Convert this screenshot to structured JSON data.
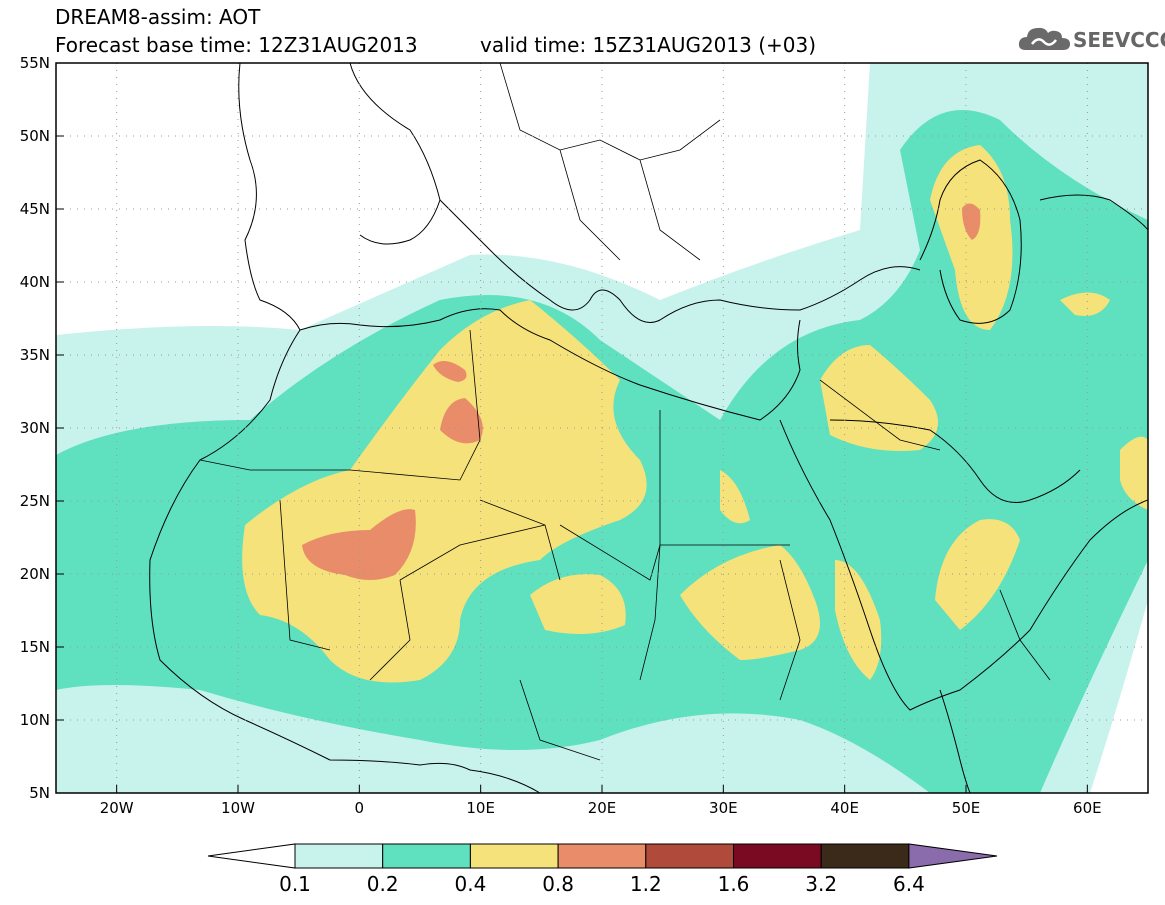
{
  "header": {
    "title_line1": "DREAM8-assim: AOT",
    "base_time": "Forecast base time: 12Z31AUG2013",
    "valid_time": "valid time: 15Z31AUG2013 (+03)"
  },
  "logo": {
    "text": "SEEVCCC",
    "icon": "cloud-icon"
  },
  "map": {
    "lon_range": [
      -25,
      65
    ],
    "lat_range": [
      5,
      55
    ],
    "lat_ticks": [
      "5N",
      "10N",
      "15N",
      "20N",
      "25N",
      "30N",
      "35N",
      "40N",
      "45N",
      "50N",
      "55N"
    ],
    "lon_ticks": [
      "20W",
      "10W",
      "0",
      "10E",
      "20E",
      "30E",
      "40E",
      "50E",
      "60E"
    ],
    "variable": "AOT",
    "fill_colors": {
      "c01": "#c8f2ec",
      "c02": "#5fe0be",
      "c04": "#f5e27a",
      "c08": "#e98c6a",
      "c12": "#b04a3a",
      "c16": "#7a0a22",
      "c32": "#3b2a1a",
      "c64": "#8a6bab"
    }
  },
  "colorbar": {
    "labels": [
      "0.1",
      "0.2",
      "0.4",
      "0.8",
      "1.2",
      "1.6",
      "3.2",
      "6.4"
    ],
    "colors": [
      "#c8f2ec",
      "#5fe0be",
      "#f5e27a",
      "#e98c6a",
      "#b04a3a",
      "#7a0a22",
      "#3b2a1a"
    ],
    "under_color": "#ffffff",
    "over_color": "#8a6bab"
  }
}
